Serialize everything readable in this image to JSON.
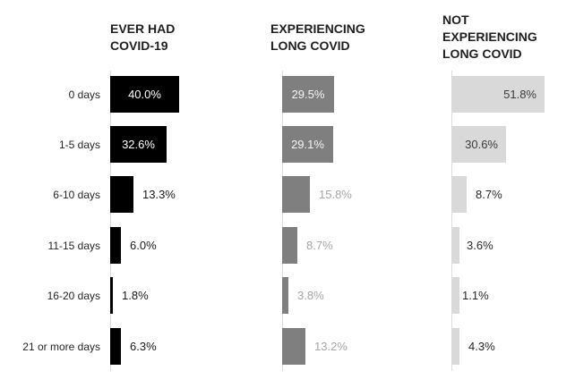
{
  "chart_data": {
    "type": "bar",
    "orientation": "horizontal",
    "title": "",
    "categories": [
      "0 days",
      "1-5 days",
      "6-10 days",
      "11-15 days",
      "16-20 days",
      "21 or more days"
    ],
    "series": [
      {
        "name": "EVER HAD COVID-19",
        "values": [
          40.0,
          32.6,
          13.3,
          6.0,
          1.8,
          6.3
        ],
        "labels": [
          "40.0%",
          "32.6%",
          "13.3%",
          "6.0%",
          "1.8%",
          "6.3%"
        ],
        "bar_color": "#000000",
        "inside_label_color": "#ffffff",
        "outside_label_color": "#1a1a1a",
        "inside_align": "center"
      },
      {
        "name": "EXPERIENCING LONG COVID",
        "values": [
          29.5,
          29.1,
          15.8,
          8.7,
          3.8,
          13.2
        ],
        "labels": [
          "29.5%",
          "29.1%",
          "15.8%",
          "8.7%",
          "3.8%",
          "13.2%"
        ],
        "bar_color": "#7f7f7f",
        "inside_label_color": "#f5f5f5",
        "outside_label_color": "#a6a6a6",
        "inside_align": "center"
      },
      {
        "name": "NOT EXPERIENCING LONG COVID",
        "values": [
          51.8,
          30.6,
          8.7,
          3.6,
          1.1,
          4.3
        ],
        "labels": [
          "51.8%",
          "30.6%",
          "8.7%",
          "3.6%",
          "1.1%",
          "4.3%"
        ],
        "bar_color": "#d9d9d9",
        "inside_label_color": "#3b3b3b",
        "outside_label_color": "#262626",
        "inside_align": "end"
      }
    ],
    "xlim": [
      0,
      60
    ],
    "grid": false,
    "legend_position": "none",
    "axis_line_color": "#dcdcdc",
    "background_color": "#ffffff"
  }
}
